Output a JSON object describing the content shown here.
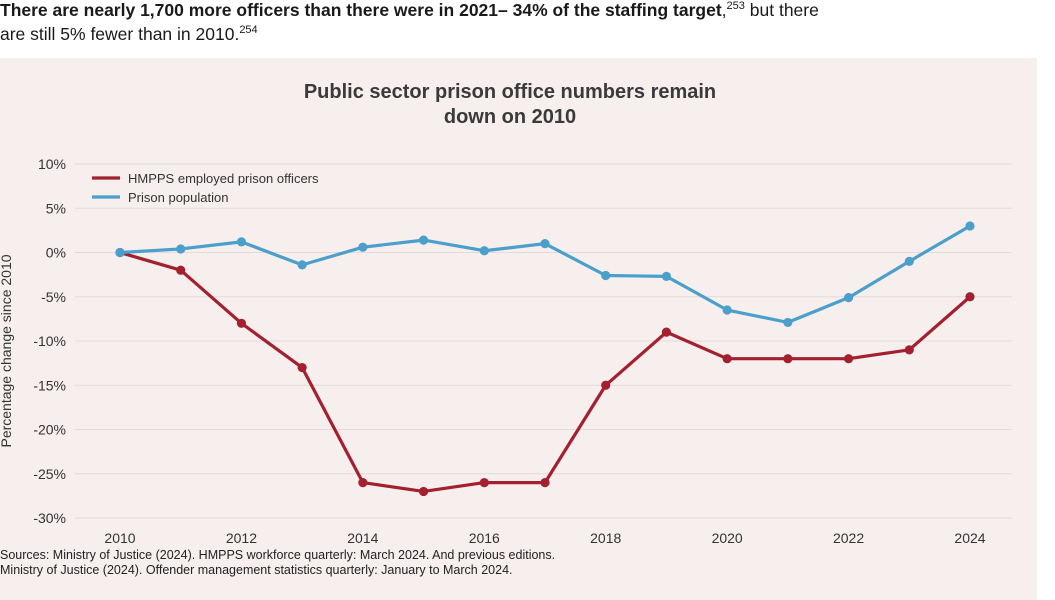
{
  "intro": {
    "bold": "There are nearly 1,700 more officers than there were in 2021– 34% of the staffing target",
    "sup1": "253",
    "rest": " but there are still 5% fewer than in 2010.",
    "sup2": "254"
  },
  "sources": {
    "line1": "Sources: Ministry of Justice (2024). HMPPS workforce quarterly: March 2024. And previous editions.",
    "line2": "Ministry of Justice (2024). Offender management statistics quarterly: January to March 2024."
  },
  "colors": {
    "officers": "#a3212f",
    "population": "#4a9fcb",
    "background": "#f7eeee",
    "grid": "#e6d9d9"
  },
  "chart_data": {
    "type": "line",
    "title": "Public sector prison office numbers remain down on 2010",
    "title_lines": [
      "Public sector prison office numbers remain",
      "down on 2010"
    ],
    "xlabel": "",
    "ylabel": "Percentage change since 2010",
    "x": [
      2010,
      2011,
      2012,
      2013,
      2014,
      2015,
      2016,
      2017,
      2018,
      2019,
      2020,
      2021,
      2022,
      2023,
      2024
    ],
    "x_ticks": [
      "2010",
      "2012",
      "2014",
      "2016",
      "2018",
      "2020",
      "2022",
      "2024"
    ],
    "y_ticks": [
      {
        "value": 10,
        "label": "10%"
      },
      {
        "value": 5,
        "label": "5%"
      },
      {
        "value": 0,
        "label": "0%"
      },
      {
        "value": -5,
        "label": "-5%"
      },
      {
        "value": -10,
        "label": "-10%"
      },
      {
        "value": -15,
        "label": "-15%"
      },
      {
        "value": -20,
        "label": "-20%"
      },
      {
        "value": -25,
        "label": "-25%"
      },
      {
        "value": -30,
        "label": "-30%"
      }
    ],
    "ylim": [
      -30,
      10
    ],
    "xlim": [
      2010,
      2024
    ],
    "grid": true,
    "legend": "top-left",
    "series": [
      {
        "name": "HMPPS employed prison officers",
        "color": "#a3212f",
        "values": [
          0,
          -2,
          -8,
          -13,
          -26,
          -27,
          -26,
          -26,
          -15,
          -9,
          -12,
          -12,
          -12,
          -11,
          -5
        ]
      },
      {
        "name": "Prison population",
        "color": "#4a9fcb",
        "values": [
          0,
          0.4,
          1.2,
          -1.4,
          0.6,
          1.4,
          0.2,
          1.0,
          -2.6,
          -2.7,
          -6.5,
          -7.9,
          -5.1,
          -1.0,
          3.0
        ]
      }
    ]
  }
}
